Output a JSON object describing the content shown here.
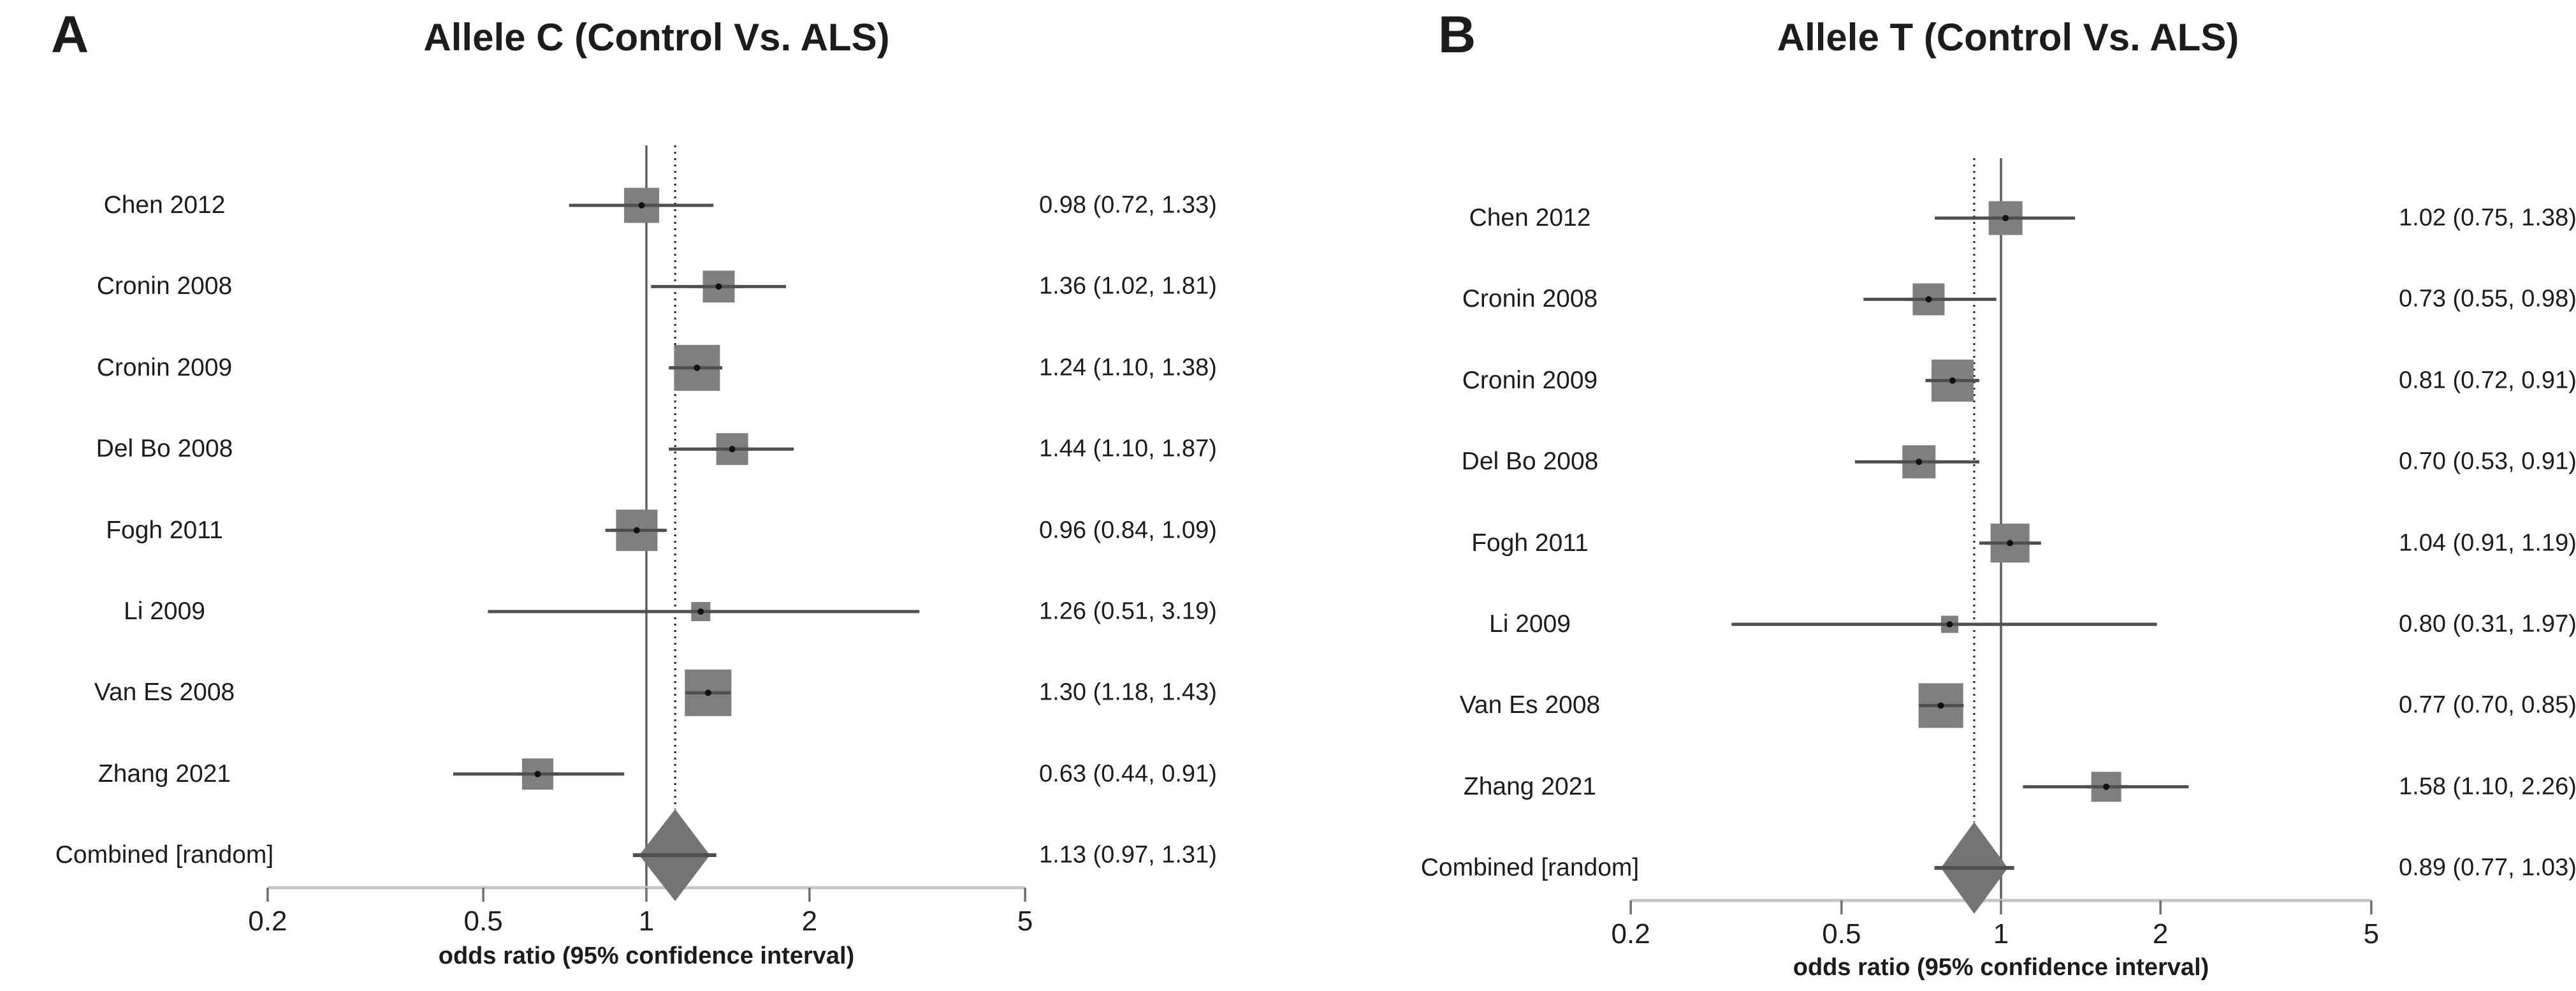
{
  "chart_data": [
    {
      "type": "forest",
      "panel_label": "A",
      "title": "Allele C (Control Vs. ALS)",
      "axis": {
        "scale": "log",
        "range": [
          0.2,
          5
        ],
        "label": "odds ratio (95% confidence interval)",
        "ticks": [
          {
            "value": 0.2,
            "label": "0.2"
          },
          {
            "value": 0.5,
            "label": "0.5"
          },
          {
            "value": 1,
            "label": "1"
          },
          {
            "value": 2,
            "label": "2"
          },
          {
            "value": 5,
            "label": "5"
          }
        ]
      },
      "reference_line_at": 1,
      "studies": [
        {
          "label": "Chen 2012",
          "or": 0.98,
          "ci_low": 0.72,
          "ci_high": 1.33,
          "text": "0.98 (0.72, 1.33)",
          "weight": 0.6
        },
        {
          "label": "Cronin 2008",
          "or": 1.36,
          "ci_low": 1.02,
          "ci_high": 1.81,
          "text": "1.36 (1.02, 1.81)",
          "weight": 0.5
        },
        {
          "label": "Cronin 2009",
          "or": 1.24,
          "ci_low": 1.1,
          "ci_high": 1.38,
          "text": "1.24 (1.10, 1.38)",
          "weight": 0.92
        },
        {
          "label": "Del Bo 2008",
          "or": 1.44,
          "ci_low": 1.1,
          "ci_high": 1.87,
          "text": "1.44 (1.10, 1.87)",
          "weight": 0.5
        },
        {
          "label": "Fogh 2011",
          "or": 0.96,
          "ci_low": 0.84,
          "ci_high": 1.09,
          "text": "0.96 (0.84, 1.09)",
          "weight": 0.78
        },
        {
          "label": "Li 2009",
          "or": 1.26,
          "ci_low": 0.51,
          "ci_high": 3.19,
          "text": "1.26 (0.51, 3.19)",
          "weight": 0.12
        },
        {
          "label": "Van Es 2008",
          "or": 1.3,
          "ci_low": 1.18,
          "ci_high": 1.43,
          "text": "1.30 (1.18, 1.43)",
          "weight": 0.95
        },
        {
          "label": "Zhang 2021",
          "or": 0.63,
          "ci_low": 0.44,
          "ci_high": 0.91,
          "text": "0.63 (0.44, 0.91)",
          "weight": 0.48
        }
      ],
      "combined": {
        "label": "Combined [random]",
        "or": 1.13,
        "ci_low": 0.97,
        "ci_high": 1.31,
        "text": "1.13 (0.97, 1.31)"
      }
    },
    {
      "type": "forest",
      "panel_label": "B",
      "title": "Allele T (Control Vs. ALS)",
      "axis": {
        "scale": "log",
        "range": [
          0.2,
          5
        ],
        "label": "odds ratio (95% confidence interval)",
        "ticks": [
          {
            "value": 0.2,
            "label": "0.2"
          },
          {
            "value": 0.5,
            "label": "0.5"
          },
          {
            "value": 1,
            "label": "1"
          },
          {
            "value": 2,
            "label": "2"
          },
          {
            "value": 5,
            "label": "5"
          }
        ]
      },
      "reference_line_at": 1,
      "studies": [
        {
          "label": "Chen 2012",
          "or": 1.02,
          "ci_low": 0.75,
          "ci_high": 1.38,
          "text": "1.02 (0.75, 1.38)",
          "weight": 0.56
        },
        {
          "label": "Cronin 2008",
          "or": 0.73,
          "ci_low": 0.55,
          "ci_high": 0.98,
          "text": "0.73 (0.55, 0.98)",
          "weight": 0.5
        },
        {
          "label": "Cronin 2009",
          "or": 0.81,
          "ci_low": 0.72,
          "ci_high": 0.91,
          "text": "0.81 (0.72, 0.91)",
          "weight": 0.8
        },
        {
          "label": "Del Bo 2008",
          "or": 0.7,
          "ci_low": 0.53,
          "ci_high": 0.91,
          "text": "0.70 (0.53, 0.91)",
          "weight": 0.54
        },
        {
          "label": "Fogh 2011",
          "or": 1.04,
          "ci_low": 0.91,
          "ci_high": 1.19,
          "text": "1.04 (0.91, 1.19)",
          "weight": 0.72
        },
        {
          "label": "Li 2009",
          "or": 0.8,
          "ci_low": 0.31,
          "ci_high": 1.97,
          "text": "0.80 (0.31, 1.97)",
          "weight": 0.05
        },
        {
          "label": "Van Es 2008",
          "or": 0.77,
          "ci_low": 0.7,
          "ci_high": 0.85,
          "text": "0.77 (0.70, 0.85)",
          "weight": 0.88
        },
        {
          "label": "Zhang 2021",
          "or": 1.58,
          "ci_low": 1.1,
          "ci_high": 2.26,
          "text": "1.58 (1.10, 2.26)",
          "weight": 0.44
        }
      ],
      "combined": {
        "label": "Combined [random]",
        "or": 0.89,
        "ci_low": 0.77,
        "ci_high": 1.03,
        "text": "0.89 (0.77, 1.03)"
      }
    }
  ],
  "colors": {
    "square": "#7f7f7f",
    "diamond": "#747474",
    "ci_line": "#4f4f4f",
    "point_dot": "#111111",
    "reference_line": "#5f5f5f",
    "pooled_dotted_line": "#1f1f1f",
    "axis_line": "#c6c6c6",
    "tick_mark": "#6e6e6e",
    "text": "#1c1c1c"
  }
}
